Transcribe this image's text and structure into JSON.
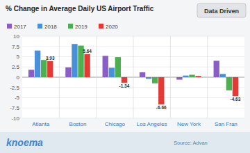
{
  "chart_data": {
    "type": "bar",
    "title": "% Change in Average Daily US Airport Traffic",
    "categories": [
      "Atlanta",
      "Boston",
      "Chicago",
      "Los Angeles",
      "New York",
      "San Fran"
    ],
    "series": [
      {
        "name": "2017",
        "color": "#8B5EC5",
        "values": [
          1.8,
          2.4,
          5.2,
          1.2,
          -0.6,
          4.0
        ]
      },
      {
        "name": "2018",
        "color": "#4A90D9",
        "values": [
          6.5,
          8.1,
          2.3,
          -0.4,
          0.4,
          0.8
        ]
      },
      {
        "name": "2019",
        "color": "#4CAF50",
        "values": [
          4.2,
          7.7,
          4.9,
          -1.5,
          0.6,
          -3.2
        ]
      },
      {
        "name": "2020",
        "color": "#E53935",
        "values": [
          3.93,
          5.64,
          -1.34,
          -6.66,
          0.3,
          -4.63
        ],
        "data_labels": true,
        "value_labels": [
          "3.93",
          "5.64",
          "-1.34",
          "-6.66",
          null,
          "-4.63"
        ]
      }
    ],
    "ylim": [
      -10,
      10
    ],
    "yticks": [
      -10,
      -7.5,
      -5,
      -2.5,
      0,
      2.5,
      5,
      7.5,
      10
    ],
    "grid": true,
    "legend": "upper left",
    "annotations": [
      "Data Driven",
      "knoema",
      "Source: Advan"
    ]
  }
}
